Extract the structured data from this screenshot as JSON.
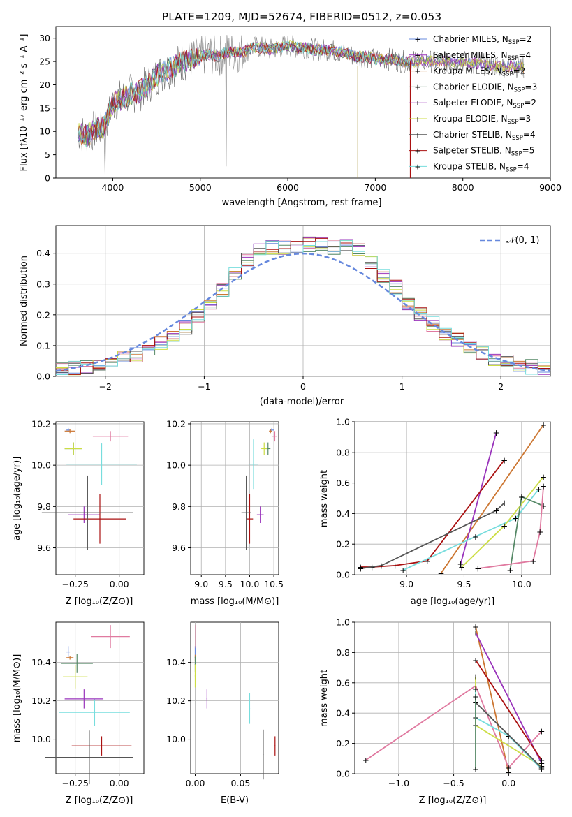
{
  "title": "PLATE=1209, MJD=52674, FIBERID=0512, z=0.053",
  "colors": {
    "Chabrier MILES": "#6688dd",
    "Salpeter MILES": "#9933bb",
    "Kroupa MILES": "#cc7733",
    "Chabrier ELODIE": "#558866",
    "Salpeter ELODIE": "#9933bb",
    "Kroupa ELODIE": "#ccdd44",
    "Chabrier STELIB": "#555555",
    "Salpeter STELIB": "#aa1111",
    "Kroupa STELIB": "#77dddd",
    "Salpeter MILES (hist)": "#e07aa0"
  },
  "panel1": {
    "xlabel": "wavelength [Angstrom, rest frame]",
    "ylabel": "Flux [fλ10⁻¹⁷ erg cm⁻² s⁻¹ A⁻¹]",
    "xticks": [
      "4000",
      "5000",
      "6000",
      "7000",
      "8000",
      "9000"
    ],
    "yticks": [
      "0",
      "5",
      "10",
      "15",
      "20",
      "25",
      "30"
    ],
    "legend": [
      {
        "label": "Chabrier MILES, N",
        "sub": "SSP",
        "suffix": "=2"
      },
      {
        "label": "Salpeter MILES, N",
        "sub": "SSP",
        "suffix": "=4"
      },
      {
        "label": "Kroupa MILES, N",
        "sub": "SSP",
        "suffix": "=2"
      },
      {
        "label": "Chabrier ELODIE, N",
        "sub": "SSP",
        "suffix": "=3"
      },
      {
        "label": "Salpeter ELODIE, N",
        "sub": "SSP",
        "suffix": "=2"
      },
      {
        "label": "Kroupa ELODIE, N",
        "sub": "SSP",
        "suffix": "=3"
      },
      {
        "label": "Chabrier STELIB, N",
        "sub": "SSP",
        "suffix": "=4"
      },
      {
        "label": "Salpeter STELIB, N",
        "sub": "SSP",
        "suffix": "=5"
      },
      {
        "label": "Kroupa STELIB, N",
        "sub": "SSP",
        "suffix": "=4"
      }
    ]
  },
  "panel2": {
    "xlabel": "(data-model)/error",
    "ylabel": "Normed distribution",
    "xticks": [
      "−2",
      "−1",
      "0",
      "1",
      "2"
    ],
    "yticks": [
      "0.0",
      "0.1",
      "0.2",
      "0.3",
      "0.4"
    ],
    "legend": "𝒩(0, 1)"
  },
  "panel3": {
    "xlabel": "Z [log₁₀(Z/Z⊙)]",
    "ylabel": "age  [log₁₀(age/yr)]",
    "xticks": [
      "−0.25",
      "0.00"
    ],
    "yticks": [
      "9.6",
      "9.8",
      "10.0",
      "10.2"
    ]
  },
  "panel4": {
    "xlabel": "mass [log₁₀(M/M⊙)]",
    "xticks": [
      "9.0",
      "9.5",
      "10.0",
      "10.5"
    ],
    "yticks": [
      "9.6",
      "9.8",
      "10.0",
      "10.2"
    ]
  },
  "panel5": {
    "xlabel": "age  [log₁₀(age/yr)]",
    "ylabel": "mass weight",
    "xticks": [
      "9.0",
      "9.5",
      "10.0"
    ],
    "yticks": [
      "0.0",
      "0.2",
      "0.4",
      "0.6",
      "0.8",
      "1.0"
    ]
  },
  "panel6": {
    "xlabel": "Z [log₁₀(Z/Z⊙)]",
    "ylabel": "mass [log₁₀(M/M⊙)]",
    "xticks": [
      "−0.25",
      "0.00"
    ],
    "yticks": [
      "10.0",
      "10.2",
      "10.4"
    ]
  },
  "panel7": {
    "xlabel": "E(B-V)",
    "xticks": [
      "0.00",
      "0.05"
    ],
    "yticks": [
      "10.0",
      "10.2",
      "10.4"
    ]
  },
  "panel8": {
    "xlabel": "Z [log₁₀(Z/Z⊙)]",
    "ylabel": "mass weight",
    "xticks": [
      "−1.0",
      "−0.5",
      "0.0"
    ],
    "yticks": [
      "0.0",
      "0.2",
      "0.4",
      "0.6",
      "0.8",
      "1.0"
    ]
  },
  "chart_data": [
    {
      "type": "line",
      "title": "PLATE=1209, MJD=52674, FIBERID=0512, z=0.053",
      "xlabel": "wavelength [Angstrom, rest frame]",
      "ylabel": "Flux [fλ10⁻¹⁷ erg cm⁻² s⁻¹ A⁻¹]",
      "xlim": [
        3350,
        9000
      ],
      "ylim": [
        0,
        32.5
      ],
      "x": [
        3600,
        3700,
        3800,
        3900,
        4000,
        4100,
        4200,
        4300,
        4400,
        4500,
        4600,
        4700,
        4800,
        4900,
        5000,
        5100,
        5200,
        5300,
        5400,
        5500,
        5600,
        5700,
        5800,
        5900,
        6000,
        6100,
        6200,
        6300,
        6400,
        6500,
        6600,
        6700,
        6800,
        6900,
        7000,
        7100,
        7200,
        7300,
        7400,
        7600,
        7800,
        8000,
        8200,
        8400,
        8600,
        8700
      ],
      "y": [
        10,
        9,
        10.5,
        11,
        16,
        17,
        18,
        18.5,
        20,
        22,
        23,
        24,
        25,
        25.5,
        26,
        26.5,
        26,
        27,
        27,
        27,
        28,
        28,
        27.5,
        28,
        28.5,
        28,
        28,
        27.5,
        27.5,
        27.5,
        27,
        26.5,
        26,
        26,
        25.5,
        25.5,
        25.5,
        25,
        25,
        25,
        25,
        25,
        24.5,
        24,
        24,
        23.5
      ],
      "series_names": [
        "Chabrier MILES, NSSP=2",
        "Salpeter MILES, NSSP=4",
        "Kroupa MILES, NSSP=2",
        "Chabrier ELODIE, NSSP=3",
        "Salpeter ELODIE, NSSP=2",
        "Kroupa ELODIE, NSSP=3",
        "Chabrier STELIB, NSSP=4",
        "Salpeter STELIB, NSSP=5",
        "Kroupa STELIB, NSSP=4"
      ]
    },
    {
      "type": "bar",
      "xlabel": "(data-model)/error",
      "ylabel": "Normed distribution",
      "xlim": [
        -2.5,
        2.5
      ],
      "ylim": [
        0,
        0.49
      ],
      "bin_edges": [
        -2.5,
        -2.375,
        -2.25,
        -2.125,
        -2.0,
        -1.875,
        -1.75,
        -1.625,
        -1.5,
        -1.375,
        -1.25,
        -1.125,
        -1.0,
        -0.875,
        -0.75,
        -0.625,
        -0.5,
        -0.375,
        -0.25,
        -0.125,
        0.0,
        0.125,
        0.25,
        0.375,
        0.5,
        0.625,
        0.75,
        0.875,
        1.0,
        1.125,
        1.25,
        1.375,
        1.5,
        1.625,
        1.75,
        1.875,
        2.0,
        2.125,
        2.25,
        2.375,
        2.5
      ],
      "values": [
        0.02,
        0.025,
        0.03,
        0.04,
        0.05,
        0.06,
        0.07,
        0.09,
        0.11,
        0.13,
        0.16,
        0.2,
        0.24,
        0.28,
        0.33,
        0.38,
        0.41,
        0.42,
        0.42,
        0.42,
        0.43,
        0.43,
        0.42,
        0.42,
        0.41,
        0.37,
        0.33,
        0.29,
        0.24,
        0.2,
        0.17,
        0.14,
        0.12,
        0.1,
        0.08,
        0.06,
        0.05,
        0.04,
        0.03,
        0.03
      ],
      "legend": "𝒩(0, 1)"
    },
    {
      "type": "scatter",
      "xlabel": "age  [log₁₀(age/yr)]",
      "ylabel": "mass weight",
      "xlim": [
        8.55,
        10.25
      ],
      "ylim": [
        0,
        1
      ],
      "series": [
        {
          "color": "#cc7733",
          "x": [
            9.3,
            10.19
          ],
          "y": [
            0.01,
            0.98
          ]
        },
        {
          "color": "#9933bb",
          "x": [
            9.47,
            9.78
          ],
          "y": [
            0.07,
            0.93
          ]
        },
        {
          "color": "#aa1111",
          "x": [
            8.6,
            8.7,
            8.9,
            9.18,
            9.85
          ],
          "y": [
            0.05,
            0.05,
            0.06,
            0.09,
            0.75
          ]
        },
        {
          "color": "#555555",
          "x": [
            8.6,
            8.78,
            9.78,
            9.85
          ],
          "y": [
            0.04,
            0.06,
            0.42,
            0.47
          ]
        },
        {
          "color": "#77dddd",
          "x": [
            8.97,
            9.6,
            9.95,
            10.15
          ],
          "y": [
            0.03,
            0.25,
            0.37,
            0.56
          ]
        },
        {
          "color": "#ccdd44",
          "x": [
            9.48,
            9.85,
            10.19
          ],
          "y": [
            0.05,
            0.32,
            0.64
          ]
        },
        {
          "color": "#558866",
          "x": [
            9.9,
            10.0,
            10.19
          ],
          "y": [
            0.03,
            0.51,
            0.45
          ]
        },
        {
          "color": "#e07aa0",
          "x": [
            9.62,
            10.1,
            10.16,
            10.19
          ],
          "y": [
            0.04,
            0.09,
            0.28,
            0.58
          ]
        }
      ]
    },
    {
      "type": "scatter",
      "xlabel": "Z [log₁₀(Z/Z⊙)]",
      "ylabel": "mass weight",
      "xlim": [
        -1.4,
        0.38
      ],
      "ylim": [
        0,
        1
      ],
      "series": [
        {
          "color": "#cc7733",
          "x": [
            -0.3,
            0.0
          ],
          "y": [
            0.97,
            0.01
          ]
        },
        {
          "color": "#9933bb",
          "x": [
            -0.3,
            0.3
          ],
          "y": [
            0.93,
            0.07
          ]
        },
        {
          "color": "#aa1111",
          "x": [
            -0.3,
            0.3
          ],
          "y": [
            0.75,
            0.09
          ]
        },
        {
          "color": "#e07aa0",
          "x": [
            -1.3,
            -0.3,
            0.0,
            0.3
          ],
          "y": [
            0.09,
            0.58,
            0.04,
            0.28
          ]
        },
        {
          "color": "#ccdd44",
          "x": [
            -0.3,
            -0.3,
            0.3
          ],
          "y": [
            0.64,
            0.32,
            0.05
          ]
        },
        {
          "color": "#77dddd",
          "x": [
            -0.3,
            -0.3,
            0.0,
            0.3
          ],
          "y": [
            0.56,
            0.37,
            0.25,
            0.03
          ]
        },
        {
          "color": "#555555",
          "x": [
            -0.3,
            0.3
          ],
          "y": [
            0.47,
            0.04
          ]
        },
        {
          "color": "#558866",
          "x": [
            -0.3,
            -0.3
          ],
          "y": [
            0.51,
            0.03
          ]
        }
      ]
    }
  ]
}
